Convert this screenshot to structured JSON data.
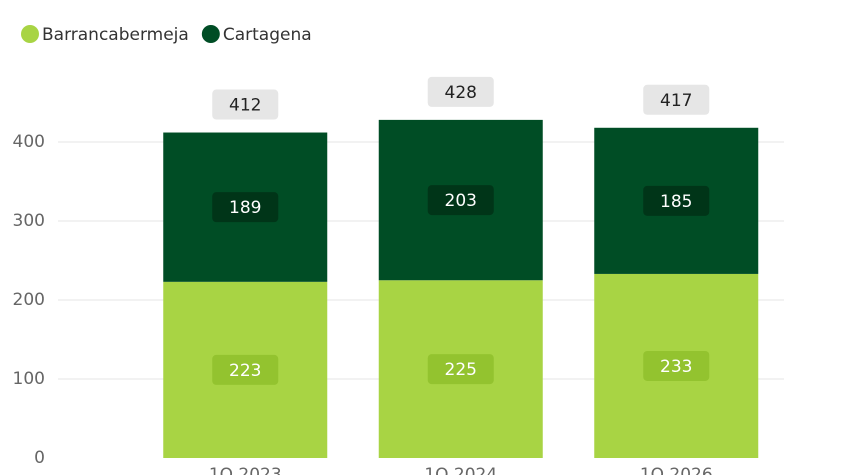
{
  "chart_data": {
    "type": "stacked_bar",
    "categories": [
      "1Q 2023",
      "1Q 2024",
      "1Q 2026"
    ],
    "series": [
      {
        "name": "Barrancabermeja",
        "color": "#a8d444",
        "values": [
          223,
          225,
          233
        ]
      },
      {
        "name": "Cartagena",
        "color": "#004d25",
        "values": [
          189,
          203,
          185
        ]
      }
    ],
    "totals": [
      412,
      428,
      417
    ],
    "ylim": [
      0,
      450
    ],
    "yticks": [
      0,
      100,
      200,
      300,
      400
    ],
    "grid": true,
    "legend": "top-left"
  }
}
